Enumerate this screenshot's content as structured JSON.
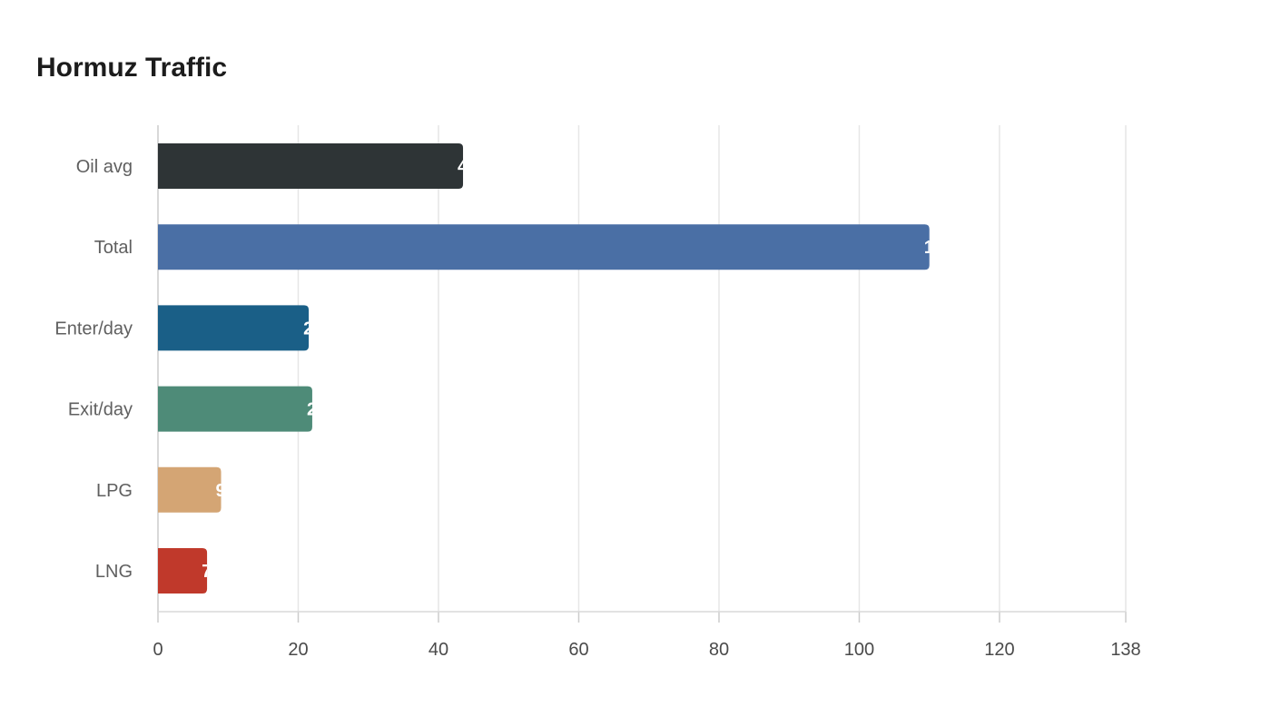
{
  "chart_data": {
    "type": "bar",
    "orientation": "horizontal",
    "title": "Hormuz Traffic",
    "xlabel": "",
    "ylabel": "",
    "categories": [
      "Oil avg",
      "Total",
      "Enter/day",
      "Exit/day",
      "LPG",
      "LNG"
    ],
    "values": [
      43.5,
      110,
      21.5,
      22,
      9,
      7
    ],
    "colors": [
      "#2e3436",
      "#4a6fa5",
      "#1a5f87",
      "#4e8b78",
      "#d4a574",
      "#c0392b"
    ],
    "xlim": [
      0,
      138
    ],
    "xticks": [
      0,
      20,
      40,
      60,
      80,
      100,
      120,
      138
    ],
    "grid": true,
    "legend": "none"
  }
}
